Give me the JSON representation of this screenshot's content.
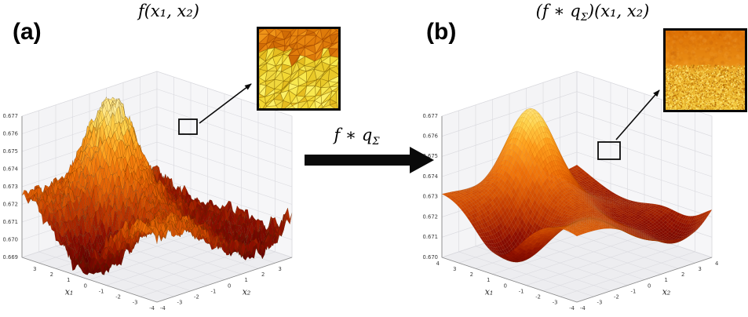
{
  "figure": {
    "background_color": "#ffffff",
    "panels": {
      "a": {
        "label": "(a)",
        "title": "f(x₁, x₂)",
        "xlabel": "x₁",
        "ylabel": "x₂"
      },
      "b": {
        "label": "(b)",
        "title_pre": "(f ∗ q",
        "title_sub": "Σ",
        "title_post": ")(x₁, x₂)",
        "xlabel": "x₁",
        "ylabel": "x₂"
      }
    },
    "arrow": {
      "label_pre": "f ∗ q",
      "label_sub": "Σ"
    },
    "insets": {
      "a": {
        "description": "zoomed detail: rough jagged triangulated surface, orange upper band over yellow spikes",
        "style": "jagged-triangles"
      },
      "b": {
        "description": "zoomed detail: smooth orange region over finely stippled yellow-orange region",
        "style": "smooth-stipple"
      }
    }
  },
  "chart_data": [
    {
      "id": "a",
      "type": "surface",
      "title": "f(x₁, x₂)",
      "xlabel": "x₁",
      "ylabel": "x₂",
      "x_range": [
        -4,
        4
      ],
      "y_range": [
        -4,
        4
      ],
      "x_ticks": [
        -4,
        -3,
        -2,
        -1,
        0,
        1,
        2,
        3
      ],
      "y_ticks": [
        -4,
        -3,
        -2,
        -1,
        0,
        1,
        2,
        3
      ],
      "z_ticks": [
        0.669,
        0.67,
        0.671,
        0.672,
        0.673,
        0.674,
        0.675,
        0.676,
        0.677
      ],
      "surface_character": "noisy high-frequency rough surface f(x1,x2); dark-red pits front-left and far right, tall pale-yellow peak at back-left, orange mid-level ridges",
      "legend": "none",
      "grid": true,
      "colormap": [
        {
          "t": 0.0,
          "color": "#5f0000"
        },
        {
          "t": 0.18,
          "color": "#8f0e00"
        },
        {
          "t": 0.35,
          "color": "#c43c00"
        },
        {
          "t": 0.55,
          "color": "#ef7008"
        },
        {
          "t": 0.72,
          "color": "#ffa11e"
        },
        {
          "t": 0.86,
          "color": "#ffd44e"
        },
        {
          "t": 1.0,
          "color": "#fff1a8"
        }
      ],
      "model": {
        "waves": [
          {
            "amp": 0.85,
            "fx": 0.72,
            "px": 0.5,
            "fy": 0.55,
            "py": 0.3
          },
          {
            "amp": 0.5,
            "fx": 0.2,
            "px": 1.1,
            "fy": 0.5,
            "py": 1.6
          },
          {
            "amp": 0.35,
            "fx": 0.95,
            "px": -0.7,
            "fy": 0.78,
            "py": 2.1
          }
        ],
        "gaussians": [
          {
            "amp": 3.4,
            "x": 3.0,
            "y": 0.3,
            "s": 2.0
          },
          {
            "amp": -2.6,
            "x": 0.8,
            "y": -2.8,
            "s": 3.2
          },
          {
            "amp": -1.7,
            "x": -2.8,
            "y": 3.2,
            "s": 2.6
          },
          {
            "amp": 0.9,
            "x": -2.5,
            "y": -1.5,
            "s": 3.0
          },
          {
            "amp": -1.0,
            "x": -0.6,
            "y": 1.8,
            "s": 1.8
          }
        ]
      },
      "render": {
        "noise_t": 0.05,
        "wrinkle_t": 0.028,
        "color_jitter": 0.09,
        "mesh_stroke": "rgba(80,45,0,0.28)",
        "mesh_width": 0.5
      }
    },
    {
      "id": "b",
      "type": "surface",
      "title": "(f ∗ qΣ)(x₁, x₂)",
      "xlabel": "x₁",
      "ylabel": "x₂",
      "x_range": [
        -4,
        4
      ],
      "y_range": [
        -4,
        4
      ],
      "x_ticks": [
        -4,
        -3,
        -2,
        -1,
        0,
        1,
        2,
        3,
        4
      ],
      "y_ticks": [
        -4,
        -3,
        -2,
        -1,
        0,
        1,
        2,
        3,
        4
      ],
      "z_ticks": [
        0.67,
        0.671,
        0.672,
        0.673,
        0.674,
        0.675,
        0.676,
        0.677
      ],
      "surface_character": "Gaussian-smoothed version of the same surface: identical landscape features but smooth (no spikes), slightly compressed extremes",
      "legend": "none",
      "grid": true,
      "colormap": [
        {
          "t": 0.0,
          "color": "#5f0000"
        },
        {
          "t": 0.18,
          "color": "#8f0e00"
        },
        {
          "t": 0.35,
          "color": "#c43c00"
        },
        {
          "t": 0.55,
          "color": "#ef7008"
        },
        {
          "t": 0.72,
          "color": "#ffa11e"
        },
        {
          "t": 0.86,
          "color": "#ffd44e"
        },
        {
          "t": 1.0,
          "color": "#fff1a8"
        }
      ],
      "model": {
        "waves": [
          {
            "amp": 0.85,
            "fx": 0.72,
            "px": 0.5,
            "fy": 0.55,
            "py": 0.3
          },
          {
            "amp": 0.5,
            "fx": 0.2,
            "px": 1.1,
            "fy": 0.5,
            "py": 1.6
          },
          {
            "amp": 0.35,
            "fx": 0.95,
            "px": -0.7,
            "fy": 0.78,
            "py": 2.1
          }
        ],
        "gaussians": [
          {
            "amp": 3.4,
            "x": 3.0,
            "y": 0.3,
            "s": 2.0
          },
          {
            "amp": -2.6,
            "x": 0.8,
            "y": -2.8,
            "s": 3.2
          },
          {
            "amp": -1.7,
            "x": -2.8,
            "y": 3.2,
            "s": 2.6
          },
          {
            "amp": 0.9,
            "x": -2.5,
            "y": -1.5,
            "s": 3.0
          },
          {
            "amp": -1.0,
            "x": -0.6,
            "y": 1.8,
            "s": 1.8
          }
        ]
      },
      "render": {
        "noise_t": 0,
        "compress": 0.86,
        "offset_t": 0.07,
        "color_jitter": 0.05,
        "mesh_stroke": "rgba(150,75,0,0.14)",
        "mesh_width": 0.45
      }
    }
  ]
}
